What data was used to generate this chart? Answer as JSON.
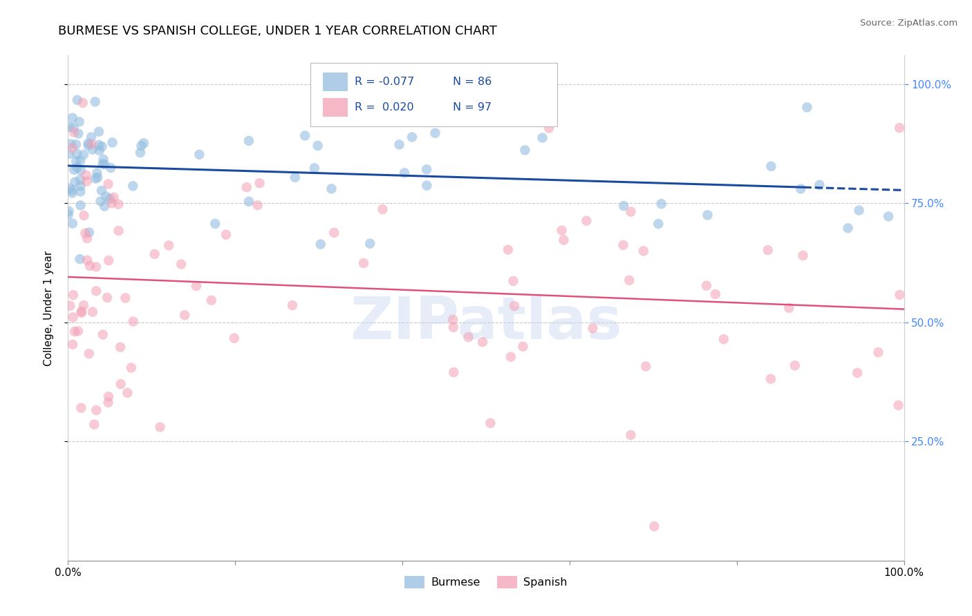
{
  "title": "BURMESE VS SPANISH COLLEGE, UNDER 1 YEAR CORRELATION CHART",
  "source": "Source: ZipAtlas.com",
  "ylabel": "College, Under 1 year",
  "r_burmese": "-0.077",
  "n_burmese": "86",
  "r_spanish": "0.020",
  "n_spanish": "97",
  "burmese_color": "#94bde0",
  "spanish_color": "#f4a0b5",
  "burmese_line_color": "#1a4a9e",
  "spanish_line_color": "#e0507a",
  "background_color": "#ffffff",
  "grid_color": "#bbbbbb",
  "watermark": "ZIPatlas",
  "title_fontsize": 13,
  "axis_fontsize": 11,
  "right_tick_color": "#4488ff"
}
